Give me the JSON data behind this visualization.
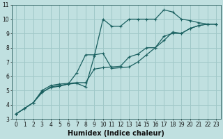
{
  "title": "",
  "xlabel": "Humidex (Indice chaleur)",
  "bg_color": "#c0e0e0",
  "grid_color": "#a0c8c8",
  "line_color": "#1a6060",
  "xlim": [
    -0.5,
    23.5
  ],
  "ylim": [
    3,
    11
  ],
  "xticks": [
    0,
    1,
    2,
    3,
    4,
    5,
    6,
    7,
    8,
    9,
    10,
    11,
    12,
    13,
    14,
    15,
    16,
    17,
    18,
    19,
    20,
    21,
    22,
    23
  ],
  "yticks": [
    3,
    4,
    5,
    6,
    7,
    8,
    9,
    10,
    11
  ],
  "lines": [
    {
      "x": [
        0,
        1,
        2,
        3,
        4,
        5,
        6,
        7,
        8,
        9,
        10,
        11,
        12,
        13,
        14,
        15,
        16,
        17,
        18,
        19,
        20,
        21,
        22,
        23
      ],
      "y": [
        3.35,
        3.75,
        4.15,
        4.9,
        5.2,
        5.3,
        5.45,
        5.5,
        5.25,
        7.4,
        10.0,
        9.5,
        9.5,
        10.0,
        10.0,
        10.0,
        10.0,
        10.65,
        10.5,
        10.0,
        9.9,
        9.75,
        9.65,
        9.65
      ]
    },
    {
      "x": [
        0,
        1,
        2,
        3,
        4,
        5,
        6,
        7,
        8,
        9,
        10,
        11,
        12,
        13,
        14,
        15,
        16,
        17,
        18,
        19,
        20,
        21,
        22,
        23
      ],
      "y": [
        3.35,
        3.75,
        4.15,
        4.85,
        5.25,
        5.35,
        5.45,
        6.25,
        7.5,
        7.5,
        7.6,
        6.55,
        6.6,
        6.65,
        7.0,
        7.5,
        8.0,
        8.8,
        9.0,
        9.0,
        9.35,
        9.55,
        9.65,
        9.65
      ]
    },
    {
      "x": [
        0,
        1,
        2,
        3,
        4,
        5,
        6,
        7,
        8,
        9,
        10,
        11,
        12,
        13,
        14,
        15,
        16,
        17,
        18,
        19,
        20,
        21,
        22,
        23
      ],
      "y": [
        3.35,
        3.75,
        4.15,
        5.0,
        5.35,
        5.45,
        5.5,
        5.55,
        5.55,
        6.5,
        6.6,
        6.65,
        6.7,
        7.35,
        7.55,
        8.0,
        8.0,
        8.5,
        9.1,
        9.0,
        9.35,
        9.55,
        9.65,
        9.65
      ]
    }
  ],
  "tick_fontsize": 5.5,
  "xlabel_fontsize": 7
}
